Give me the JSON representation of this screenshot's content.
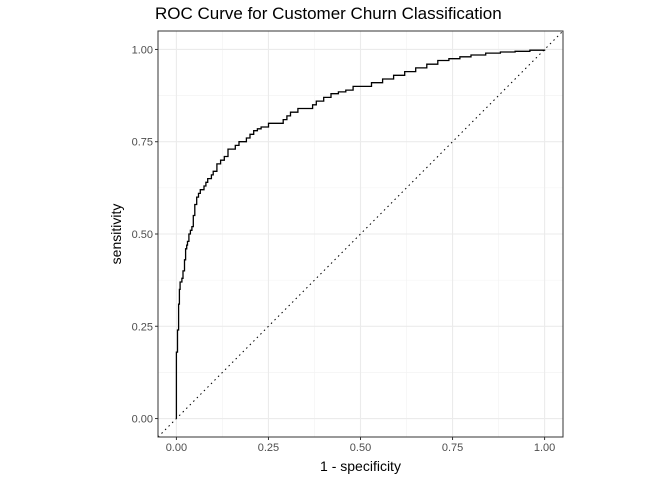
{
  "chart_data": {
    "type": "line",
    "title": "ROC Curve for Customer Churn Classification",
    "xlabel": "1 - specificity",
    "ylabel": "sensitivity",
    "xlim": [
      -0.05,
      1.05
    ],
    "ylim": [
      -0.05,
      1.05
    ],
    "x_ticks": [
      0.0,
      0.25,
      0.5,
      0.75,
      1.0
    ],
    "y_ticks": [
      0.0,
      0.25,
      0.5,
      0.75,
      1.0
    ],
    "x_tick_labels": [
      "0.00",
      "0.25",
      "0.50",
      "0.75",
      "1.00"
    ],
    "y_tick_labels": [
      "0.00",
      "0.25",
      "0.50",
      "0.75",
      "1.00"
    ],
    "grid": true,
    "reference_line": {
      "style": "dotted",
      "x": [
        -0.05,
        1.05
      ],
      "y": [
        -0.05,
        1.05
      ]
    },
    "series": [
      {
        "x": [
          0.0,
          0.0,
          0.003,
          0.003,
          0.006,
          0.008,
          0.01,
          0.012,
          0.015,
          0.018,
          0.022,
          0.025,
          0.028,
          0.03,
          0.034,
          0.038,
          0.042,
          0.046,
          0.05,
          0.055,
          0.06,
          0.065,
          0.07,
          0.075,
          0.08,
          0.085,
          0.09,
          0.095,
          0.1,
          0.11,
          0.12,
          0.13,
          0.14,
          0.15,
          0.16,
          0.17,
          0.18,
          0.19,
          0.2,
          0.21,
          0.22,
          0.23,
          0.24,
          0.25,
          0.27,
          0.29,
          0.3,
          0.31,
          0.33,
          0.35,
          0.37,
          0.38,
          0.4,
          0.42,
          0.44,
          0.46,
          0.48,
          0.5,
          0.53,
          0.56,
          0.59,
          0.62,
          0.65,
          0.68,
          0.71,
          0.74,
          0.77,
          0.8,
          0.84,
          0.88,
          0.92,
          0.96,
          1.0
        ],
        "y": [
          0.0,
          0.18,
          0.18,
          0.24,
          0.31,
          0.35,
          0.37,
          0.37,
          0.38,
          0.4,
          0.43,
          0.46,
          0.47,
          0.48,
          0.5,
          0.51,
          0.52,
          0.55,
          0.58,
          0.6,
          0.61,
          0.62,
          0.62,
          0.63,
          0.64,
          0.65,
          0.65,
          0.66,
          0.67,
          0.69,
          0.7,
          0.71,
          0.73,
          0.73,
          0.74,
          0.75,
          0.75,
          0.76,
          0.77,
          0.78,
          0.785,
          0.79,
          0.79,
          0.8,
          0.8,
          0.81,
          0.82,
          0.83,
          0.84,
          0.84,
          0.85,
          0.86,
          0.87,
          0.88,
          0.885,
          0.89,
          0.9,
          0.9,
          0.91,
          0.92,
          0.93,
          0.94,
          0.95,
          0.96,
          0.97,
          0.975,
          0.98,
          0.985,
          0.99,
          0.993,
          0.995,
          0.998,
          1.0
        ]
      }
    ]
  }
}
